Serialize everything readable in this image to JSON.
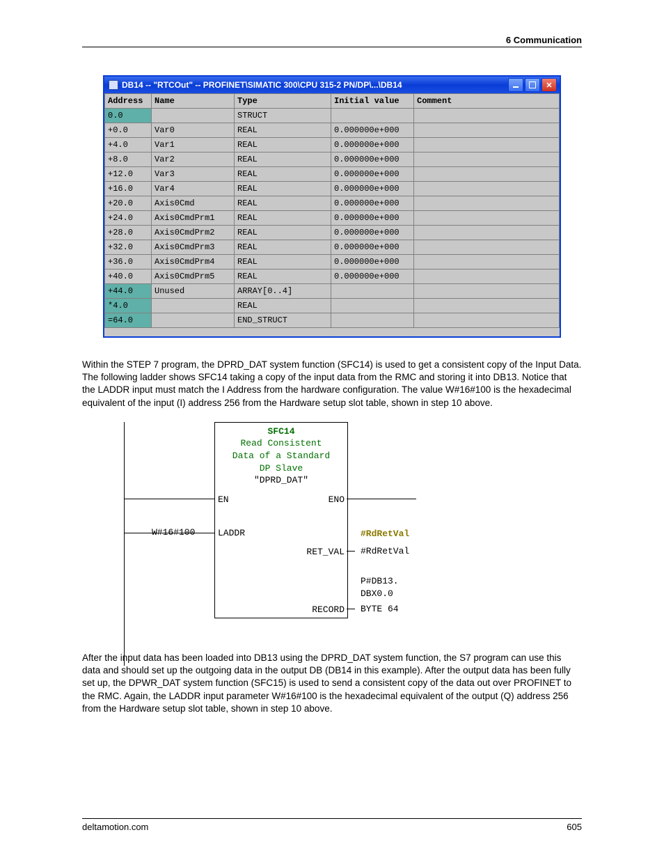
{
  "header": {
    "section": "6  Communication"
  },
  "footer": {
    "site": "deltamotion.com",
    "page": "605"
  },
  "db_window": {
    "title": "DB14 -- \"RTCOut\" -- PROFINET\\SIMATIC 300\\CPU 315-2 PN/DP\\...\\DB14",
    "columns": [
      "Address",
      "Name",
      "Type",
      "Initial value",
      "Comment"
    ],
    "col_widths": [
      "58px",
      "110px",
      "130px",
      "110px",
      "auto"
    ],
    "header_bg": "#c8c8c8",
    "cell_bg": "#c8c8c8",
    "teal_bg": "#5fb0a8",
    "border_color": "#808080",
    "titlebar_gradient": [
      "#3a6df0",
      "#0a3dd6"
    ],
    "font": "Courier New 12px",
    "rows": [
      {
        "addr": "0.0",
        "name": "",
        "type": "STRUCT",
        "init": "",
        "comment": "",
        "teal": true
      },
      {
        "addr": "+0.0",
        "name": "Var0",
        "type": "REAL",
        "init": "0.000000e+000",
        "comment": ""
      },
      {
        "addr": "+4.0",
        "name": "Var1",
        "type": "REAL",
        "init": "0.000000e+000",
        "comment": ""
      },
      {
        "addr": "+8.0",
        "name": "Var2",
        "type": "REAL",
        "init": "0.000000e+000",
        "comment": ""
      },
      {
        "addr": "+12.0",
        "name": "Var3",
        "type": "REAL",
        "init": "0.000000e+000",
        "comment": ""
      },
      {
        "addr": "+16.0",
        "name": "Var4",
        "type": "REAL",
        "init": "0.000000e+000",
        "comment": ""
      },
      {
        "addr": "+20.0",
        "name": "Axis0Cmd",
        "type": "REAL",
        "init": "0.000000e+000",
        "comment": ""
      },
      {
        "addr": "+24.0",
        "name": "Axis0CmdPrm1",
        "type": "REAL",
        "init": "0.000000e+000",
        "comment": ""
      },
      {
        "addr": "+28.0",
        "name": "Axis0CmdPrm2",
        "type": "REAL",
        "init": "0.000000e+000",
        "comment": ""
      },
      {
        "addr": "+32.0",
        "name": "Axis0CmdPrm3",
        "type": "REAL",
        "init": "0.000000e+000",
        "comment": ""
      },
      {
        "addr": "+36.0",
        "name": "Axis0CmdPrm4",
        "type": "REAL",
        "init": "0.000000e+000",
        "comment": ""
      },
      {
        "addr": "+40.0",
        "name": "Axis0CmdPrm5",
        "type": "REAL",
        "init": "0.000000e+000",
        "comment": ""
      },
      {
        "addr": "+44.0",
        "name": "Unused",
        "type": "ARRAY[0..4]",
        "init": "",
        "comment": "",
        "teal": true
      },
      {
        "addr": "*4.0",
        "name": "",
        "type": "REAL",
        "init": "",
        "comment": "",
        "teal": true
      },
      {
        "addr": "=64.0",
        "name": "",
        "type": "END_STRUCT",
        "init": "",
        "comment": "",
        "teal": true
      }
    ]
  },
  "paragraph1": "Within the STEP 7 program, the DPRD_DAT system function (SFC14) is used to get a consistent copy of the Input Data. The following ladder shows SFC14 taking a copy of the input data from the RMC and storing it into DB13. Notice that the LADDR input must match the I Address from the hardware configuration. The value W#16#100 is the hexadecimal equivalent of the input (I) address 256 from the Hardware setup slot table, shown in step 10 above.",
  "ladder": {
    "block_title": "SFC14",
    "block_sub1": "Read Consistent",
    "block_sub2": "Data of a Standard",
    "block_sub3": "DP Slave",
    "block_name": "\"DPRD_DAT\"",
    "pin_EN": "EN",
    "pin_ENO": "ENO",
    "pin_LADDR": "LADDR",
    "pin_RETVAL": "RET_VAL",
    "pin_RECORD": "RECORD",
    "laddr_value": "W#16#100",
    "retval_sym": "#RdRetVal",
    "retval_val": "#RdRetVal",
    "record_l1": "P#DB13.",
    "record_l2": "DBX0.0",
    "record_l3": "BYTE 64",
    "title_color": "#007000",
    "sym_color": "#8a7a00"
  },
  "paragraph2": "After the input data has been loaded into DB13 using the DPRD_DAT system function, the S7 program can use this data and should set up the outgoing data in the output DB (DB14 in this example). After the output data has been fully set up, the DPWR_DAT system function (SFC15) is used to send a consistent copy of the data out over PROFINET to the RMC. Again, the LADDR input parameter W#16#100 is the hexadecimal equivalent of the output (Q) address 256 from the Hardware setup slot table, shown in step 10 above."
}
